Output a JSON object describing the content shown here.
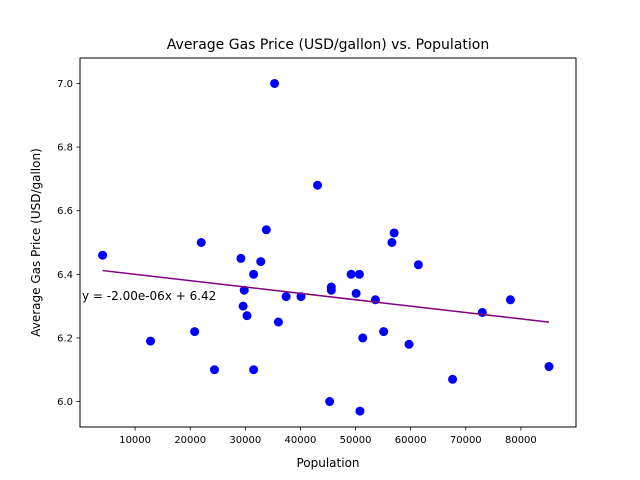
{
  "chart_data": {
    "type": "scatter",
    "title": "Average Gas Price (USD/gallon) vs. Population",
    "xlabel": "Population",
    "ylabel": "Average Gas Price (USD/gallon)",
    "xlim": [
      0,
      90000
    ],
    "ylim": [
      5.92,
      7.08
    ],
    "xticks": [
      10000,
      20000,
      30000,
      40000,
      50000,
      60000,
      70000,
      80000
    ],
    "yticks": [
      6.0,
      6.2,
      6.4,
      6.6,
      6.8,
      7.0
    ],
    "xtick_labels": [
      "10000",
      "20000",
      "30000",
      "40000",
      "50000",
      "60000",
      "70000",
      "80000"
    ],
    "ytick_labels": [
      "6.0",
      "6.2",
      "6.4",
      "6.6",
      "6.8",
      "7.0"
    ],
    "grid": false,
    "point_color": "#0000ff",
    "points": [
      {
        "x": 4100,
        "y": 6.46
      },
      {
        "x": 12800,
        "y": 6.19
      },
      {
        "x": 20800,
        "y": 6.22
      },
      {
        "x": 22000,
        "y": 6.5
      },
      {
        "x": 24400,
        "y": 6.1
      },
      {
        "x": 29200,
        "y": 6.45
      },
      {
        "x": 29600,
        "y": 6.3
      },
      {
        "x": 29800,
        "y": 6.35
      },
      {
        "x": 30300,
        "y": 6.27
      },
      {
        "x": 31500,
        "y": 6.4
      },
      {
        "x": 31500,
        "y": 6.1
      },
      {
        "x": 32800,
        "y": 6.44
      },
      {
        "x": 33800,
        "y": 6.54
      },
      {
        "x": 35300,
        "y": 7.0
      },
      {
        "x": 36000,
        "y": 6.25
      },
      {
        "x": 37400,
        "y": 6.33
      },
      {
        "x": 40100,
        "y": 6.33
      },
      {
        "x": 43100,
        "y": 6.68
      },
      {
        "x": 45300,
        "y": 6.0
      },
      {
        "x": 45600,
        "y": 6.36
      },
      {
        "x": 45600,
        "y": 6.35
      },
      {
        "x": 49200,
        "y": 6.4
      },
      {
        "x": 50100,
        "y": 6.34
      },
      {
        "x": 50700,
        "y": 6.4
      },
      {
        "x": 50800,
        "y": 5.97
      },
      {
        "x": 51300,
        "y": 6.2
      },
      {
        "x": 53600,
        "y": 6.32
      },
      {
        "x": 55100,
        "y": 6.22
      },
      {
        "x": 56600,
        "y": 6.5
      },
      {
        "x": 57000,
        "y": 6.53
      },
      {
        "x": 59700,
        "y": 6.18
      },
      {
        "x": 61400,
        "y": 6.43
      },
      {
        "x": 67600,
        "y": 6.07
      },
      {
        "x": 73000,
        "y": 6.28
      },
      {
        "x": 78100,
        "y": 6.32
      },
      {
        "x": 85100,
        "y": 6.11
      }
    ],
    "regression": {
      "slope": -2e-06,
      "intercept": 6.42,
      "x_start": 4100,
      "x_end": 85100,
      "color": "#800080",
      "equation": "y = -2.00e-06x + 6.42"
    }
  }
}
